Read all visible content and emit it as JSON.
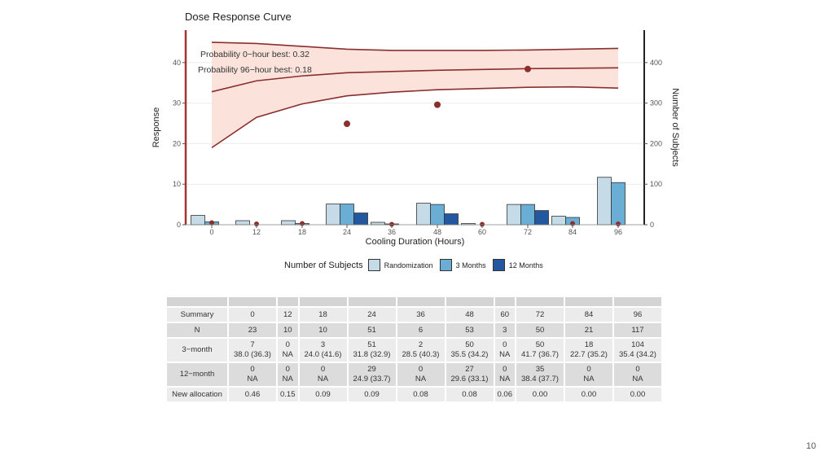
{
  "chart_data": {
    "type": "bar",
    "title": "Dose Response Curve",
    "xlabel": "Cooling Duration (Hours)",
    "ylabel": "Response",
    "ylabel_right": "Number of Subjects",
    "categories": [
      "0",
      "12",
      "18",
      "24",
      "36",
      "48",
      "60",
      "72",
      "84",
      "96"
    ],
    "ylim": [
      0,
      48
    ],
    "yticks": [
      0,
      10,
      20,
      30,
      40
    ],
    "y2lim": [
      0,
      480
    ],
    "y2ticks": [
      0,
      100,
      200,
      300,
      400
    ],
    "series": [
      {
        "name": "Randomization",
        "color": "#c6dbe8",
        "values": [
          23,
          10,
          10,
          51,
          6,
          53,
          3,
          50,
          21,
          117
        ]
      },
      {
        "name": "3 Months",
        "color": "#6aaed6",
        "values": [
          7,
          0,
          3,
          51,
          2,
          50,
          0,
          50,
          18,
          104
        ]
      },
      {
        "name": "12 Months",
        "color": "#2358a0",
        "values": [
          0,
          0,
          0,
          29,
          0,
          27,
          0,
          35,
          0,
          0
        ]
      }
    ],
    "curve": {
      "median": [
        32.8,
        35.5,
        36.7,
        37.5,
        37.8,
        38.1,
        38.3,
        38.5,
        38.6,
        38.7
      ],
      "lower": [
        19,
        26.5,
        29.8,
        31.8,
        32.7,
        33.3,
        33.6,
        33.9,
        34,
        33.7
      ],
      "upper": [
        45,
        44.7,
        44,
        43.3,
        43,
        43,
        43,
        43.1,
        43.3,
        43.5
      ]
    },
    "points": [
      0.5,
      0.2,
      0.3,
      24.9,
      0.1,
      29.6,
      0.1,
      38.4,
      0.3,
      0.2
    ],
    "annotations": [
      "Probability 0−hour best: 0.32",
      "Probability 96−hour best: 0.18"
    ],
    "legend_title": "Number of Subjects",
    "legend_position": "bottom",
    "grid": true,
    "colors": {
      "band": "#fbe3dc",
      "curve": "#8b2e2e",
      "point": "#8b2e2e",
      "axis_left": "#a33434"
    }
  },
  "table": {
    "rows": [
      {
        "label": "Summary",
        "cells": [
          "0",
          "12",
          "18",
          "24",
          "36",
          "48",
          "60",
          "72",
          "84",
          "96"
        ]
      },
      {
        "label": "N",
        "cells": [
          "23",
          "10",
          "10",
          "51",
          "6",
          "53",
          "3",
          "50",
          "21",
          "117"
        ]
      },
      {
        "label": "3−month",
        "cells": [
          [
            "7",
            "38.0 (36.3)"
          ],
          [
            "0",
            "NA"
          ],
          [
            "3",
            "24.0 (41.6)"
          ],
          [
            "51",
            "31.8 (32.9)"
          ],
          [
            "2",
            "28.5 (40.3)"
          ],
          [
            "50",
            "35.5 (34.2)"
          ],
          [
            "0",
            "NA"
          ],
          [
            "50",
            "41.7 (36.7)"
          ],
          [
            "18",
            "22.7 (35.2)"
          ],
          [
            "104",
            "35.4 (34.2)"
          ]
        ]
      },
      {
        "label": "12−month",
        "cells": [
          [
            "0",
            "NA"
          ],
          [
            "0",
            "NA"
          ],
          [
            "0",
            "NA"
          ],
          [
            "29",
            "24.9 (33.7)"
          ],
          [
            "0",
            "NA"
          ],
          [
            "27",
            "29.6 (33.1)"
          ],
          [
            "0",
            "NA"
          ],
          [
            "35",
            "38.4 (37.7)"
          ],
          [
            "0",
            "NA"
          ],
          [
            "0",
            "NA"
          ]
        ]
      },
      {
        "label": "New allocation",
        "cells": [
          "0.46",
          "0.15",
          "0.09",
          "0.09",
          "0.08",
          "0.08",
          "0.06",
          "0.00",
          "0.00",
          "0.00"
        ]
      }
    ]
  },
  "page_number": "10"
}
